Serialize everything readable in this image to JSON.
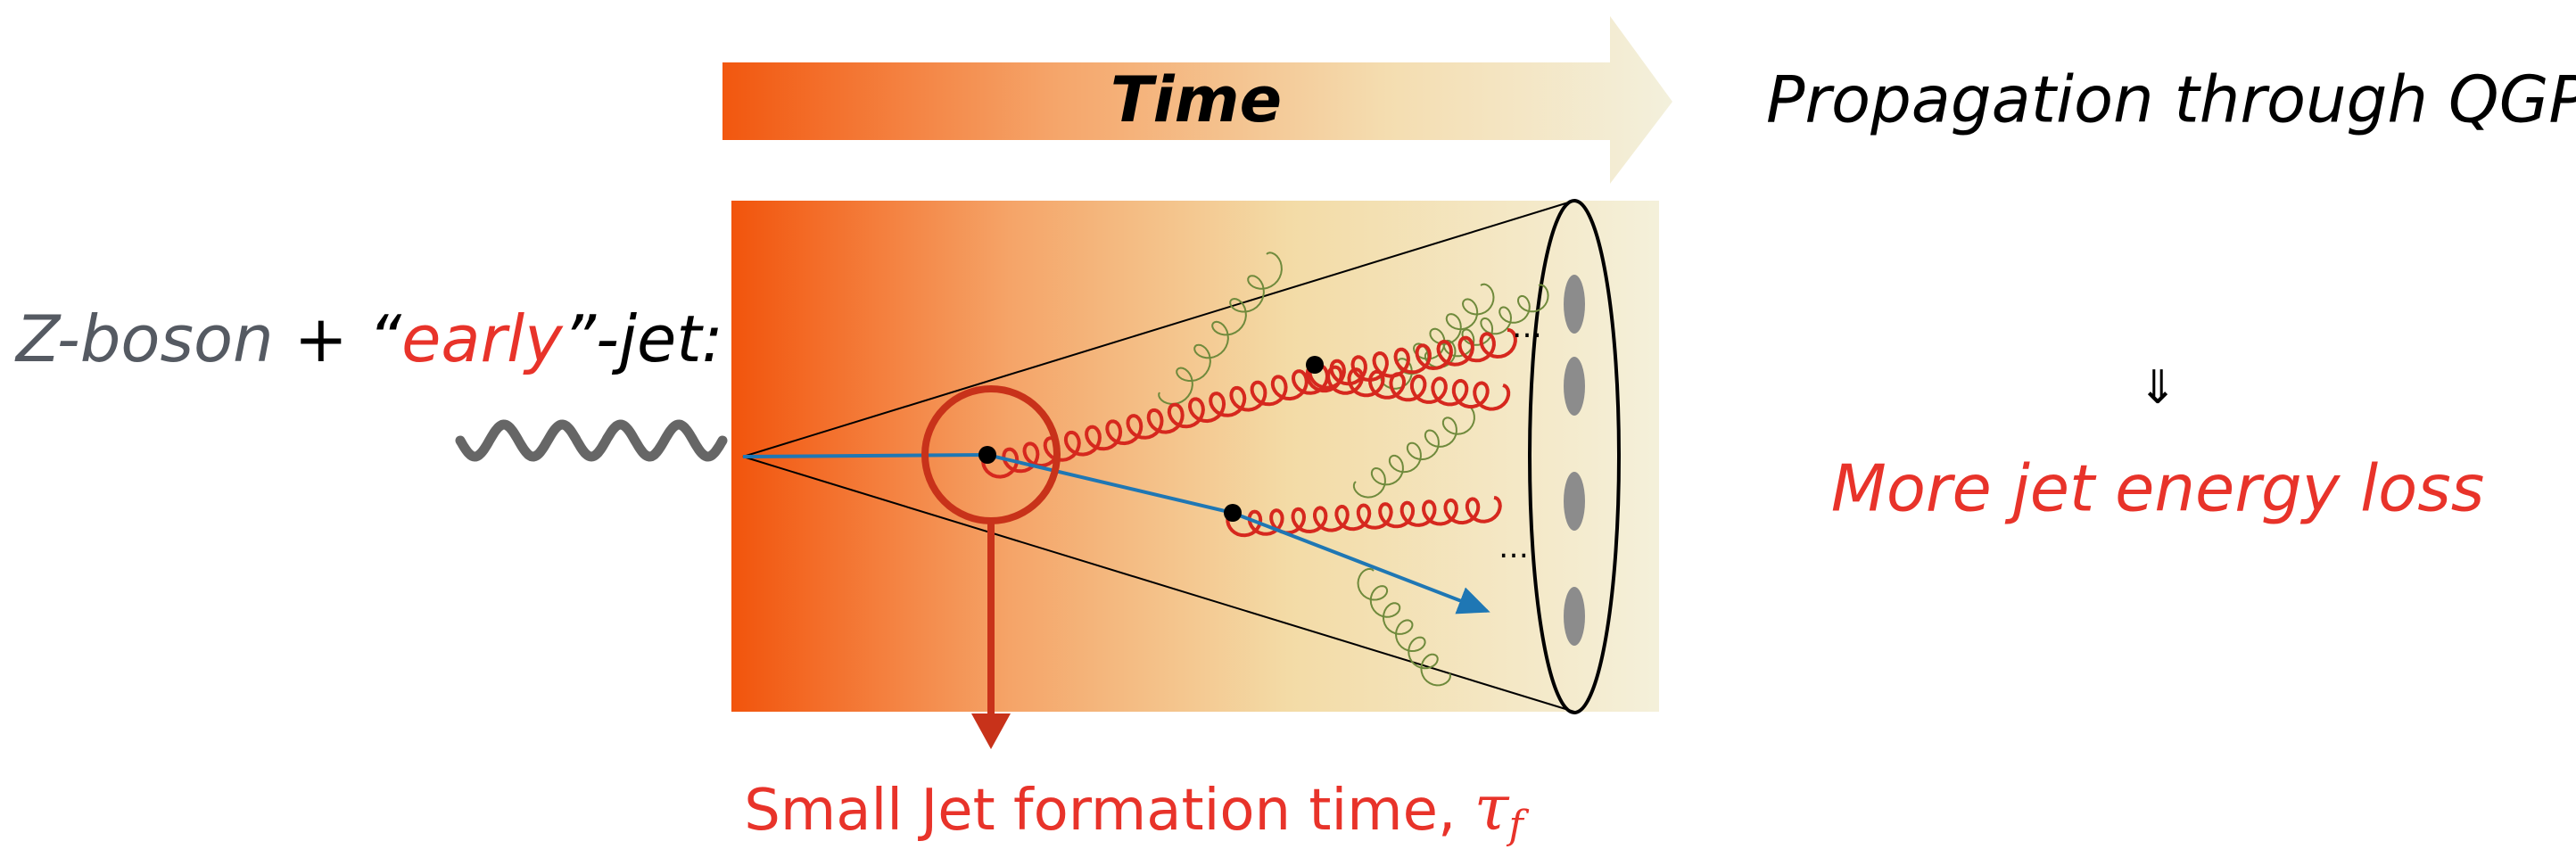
{
  "header": {
    "time": "Time",
    "propagation": "Propagation through QGP"
  },
  "left_label": {
    "zboson": "Z-boson",
    "plus": "+",
    "open_quote": "“",
    "early": "early",
    "close": "”-jet:"
  },
  "result": {
    "arrow": "⇓",
    "text": "More jet energy loss"
  },
  "caption": {
    "text": "Small Jet formation time, ",
    "tau": "τ",
    "sub": "f"
  },
  "ellipsis": "…"
}
